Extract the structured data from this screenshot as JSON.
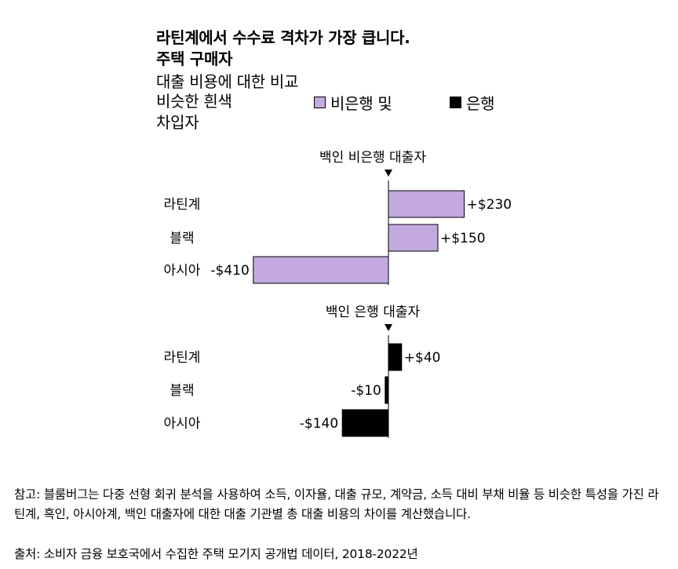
{
  "title_line1": "라틴계에서 수수료 격차가 가장 큽니다.",
  "title_line2": "주택 구매자",
  "subtitle": "대출 비용에 대한 비교",
  "legend": {
    "intro_line1": "비슷한 흰색",
    "intro_line2": "차입자",
    "nonbank_label": "비은행 및",
    "bank_label": "은행",
    "nonbank_color": "#c4a8e0",
    "bank_color": "#000000"
  },
  "chart_data": [
    {
      "type": "bar",
      "orientation": "horizontal",
      "title": "백인 비은행 대출자",
      "categories": [
        "라틴계",
        "블랙",
        "아시아"
      ],
      "values": [
        230,
        150,
        -410
      ],
      "value_labels": [
        "+$230",
        "+$150",
        "-$410"
      ],
      "color": "#c4a8e0",
      "grid": false
    },
    {
      "type": "bar",
      "orientation": "horizontal",
      "title": "백인 은행 대출자",
      "categories": [
        "라틴계",
        "블랙",
        "아시아"
      ],
      "values": [
        40,
        -10,
        -140
      ],
      "value_labels": [
        "+$40",
        "-$10",
        "-$140"
      ],
      "color": "#000000",
      "grid": false
    }
  ],
  "note": "참고: 블룸버그는 다중 선형 회귀 분석을 사용하여 소득, 이자율, 대출 규모, 계약금, 소득 대비 부채 비율 등 비슷한 특성을 가진 라틴계, 흑인, 아시아계, 백인 대출자에 대한 대출 기관별 총 대출 비용의 차이를 계산했습니다.",
  "source": "출처: 소비자 금융 보호국에서 수집한 주택 모기지 공개법 데이터, 2018-2022년"
}
